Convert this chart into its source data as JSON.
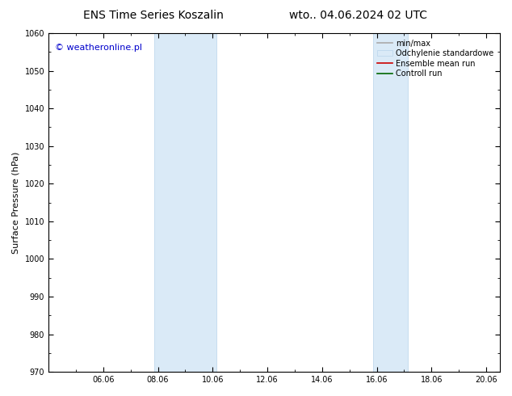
{
  "title_left": "ENS Time Series Koszalin",
  "title_right": "wto.. 04.06.2024 02 UTC",
  "ylabel": "Surface Pressure (hPa)",
  "ylim": [
    970,
    1060
  ],
  "yticks": [
    970,
    980,
    990,
    1000,
    1010,
    1020,
    1030,
    1040,
    1050,
    1060
  ],
  "xlim_start": 4.0,
  "xlim_end": 20.5,
  "xtick_labels": [
    "06.06",
    "08.06",
    "10.06",
    "12.06",
    "14.06",
    "16.06",
    "18.06",
    "20.06"
  ],
  "xtick_positions": [
    6.0,
    8.0,
    10.0,
    12.0,
    14.0,
    16.0,
    18.0,
    20.0
  ],
  "shaded_bands": [
    {
      "xmin": 7.875,
      "xmax": 10.125
    },
    {
      "xmin": 15.875,
      "xmax": 17.125
    }
  ],
  "shade_color": "#daeaf7",
  "shade_edge_color": "#b8d4eb",
  "watermark_text": "© weatheronline.pl",
  "watermark_color": "#0000cc",
  "legend_entries": [
    {
      "label": "min/max",
      "type": "line",
      "color": "#aaaaaa",
      "lw": 1.2
    },
    {
      "label": "Odchylenie standardowe",
      "type": "box",
      "color": "#daeaf7",
      "edge": "#b8d4eb"
    },
    {
      "label": "Ensemble mean run",
      "type": "line",
      "color": "#cc0000",
      "lw": 1.2
    },
    {
      "label": "Controll run",
      "type": "line",
      "color": "#006600",
      "lw": 1.2
    }
  ],
  "bg_color": "#ffffff",
  "plot_bg_color": "#ffffff",
  "title_fontsize": 10,
  "tick_fontsize": 7,
  "watermark_fontsize": 8,
  "ylabel_fontsize": 8,
  "legend_fontsize": 7
}
